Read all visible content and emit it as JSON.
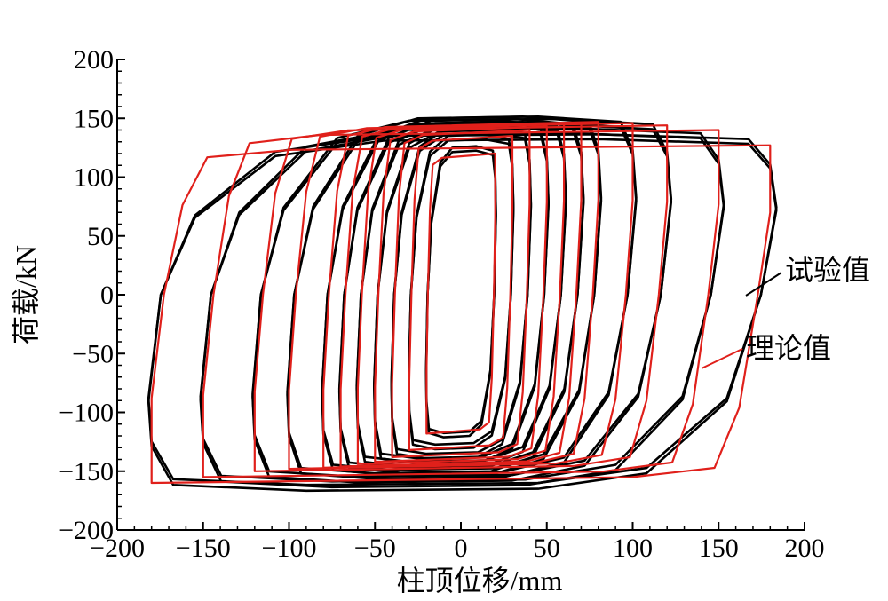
{
  "chart_data": {
    "type": "line",
    "xlabel": "柱顶位移/mm",
    "ylabel": "荷载/kN",
    "xlim": [
      -200,
      200
    ],
    "ylim": [
      -200,
      200
    ],
    "x_ticks": [
      -200,
      -150,
      -100,
      -50,
      0,
      50,
      100,
      150,
      200
    ],
    "y_ticks": [
      -200,
      -150,
      -100,
      -50,
      0,
      50,
      100,
      150,
      200
    ],
    "x_tick_labels": [
      "−200",
      "−150",
      "−100",
      "−50",
      "0",
      "50",
      "100",
      "150",
      "200"
    ],
    "y_tick_labels": [
      "−200",
      "−150",
      "−100",
      "−50",
      "0",
      "50",
      "100",
      "150",
      "200"
    ],
    "grid": false,
    "legend_placement": "right (annotation leaders)",
    "series": [
      {
        "name": "试验值",
        "color": "#000000",
        "loops": [
          {
            "amp": 20,
            "fmax": 125,
            "fmin": -120
          },
          {
            "amp": 30,
            "fmax": 135,
            "fmin": -130
          },
          {
            "amp": 40,
            "fmax": 140,
            "fmin": -138
          },
          {
            "amp": 50,
            "fmax": 143,
            "fmin": -142
          },
          {
            "amp": 60,
            "fmax": 146,
            "fmin": -145
          },
          {
            "amp": 70,
            "fmax": 148,
            "fmin": -150
          },
          {
            "amp": 80,
            "fmax": 150,
            "fmin": -152
          },
          {
            "amp": 100,
            "fmax": 150,
            "fmin": -155
          },
          {
            "amp": 120,
            "fmax": 148,
            "fmin": -158
          },
          {
            "amp": 150,
            "fmax": 140,
            "fmin": -162
          },
          {
            "amp": 180,
            "fmax": 135,
            "fmin": -165
          }
        ]
      },
      {
        "name": "理论值",
        "color": "#e0201b",
        "loops": [
          {
            "amp": 20,
            "fmax": 120,
            "fmin": -118
          },
          {
            "amp": 30,
            "fmax": 135,
            "fmin": -132
          },
          {
            "amp": 40,
            "fmax": 140,
            "fmin": -138
          },
          {
            "amp": 50,
            "fmax": 143,
            "fmin": -142
          },
          {
            "amp": 60,
            "fmax": 145,
            "fmin": -144
          },
          {
            "amp": 70,
            "fmax": 146,
            "fmin": -146
          },
          {
            "amp": 80,
            "fmax": 147,
            "fmin": -147
          },
          {
            "amp": 100,
            "fmax": 146,
            "fmin": -148
          },
          {
            "amp": 120,
            "fmax": 144,
            "fmin": -150
          },
          {
            "amp": 150,
            "fmax": 140,
            "fmin": -155
          },
          {
            "amp": 180,
            "fmax": 127,
            "fmin": -160
          }
        ]
      }
    ],
    "annotations": [
      {
        "text": "试验值",
        "series": "试验值"
      },
      {
        "text": "理论值",
        "series": "理论值"
      }
    ]
  }
}
